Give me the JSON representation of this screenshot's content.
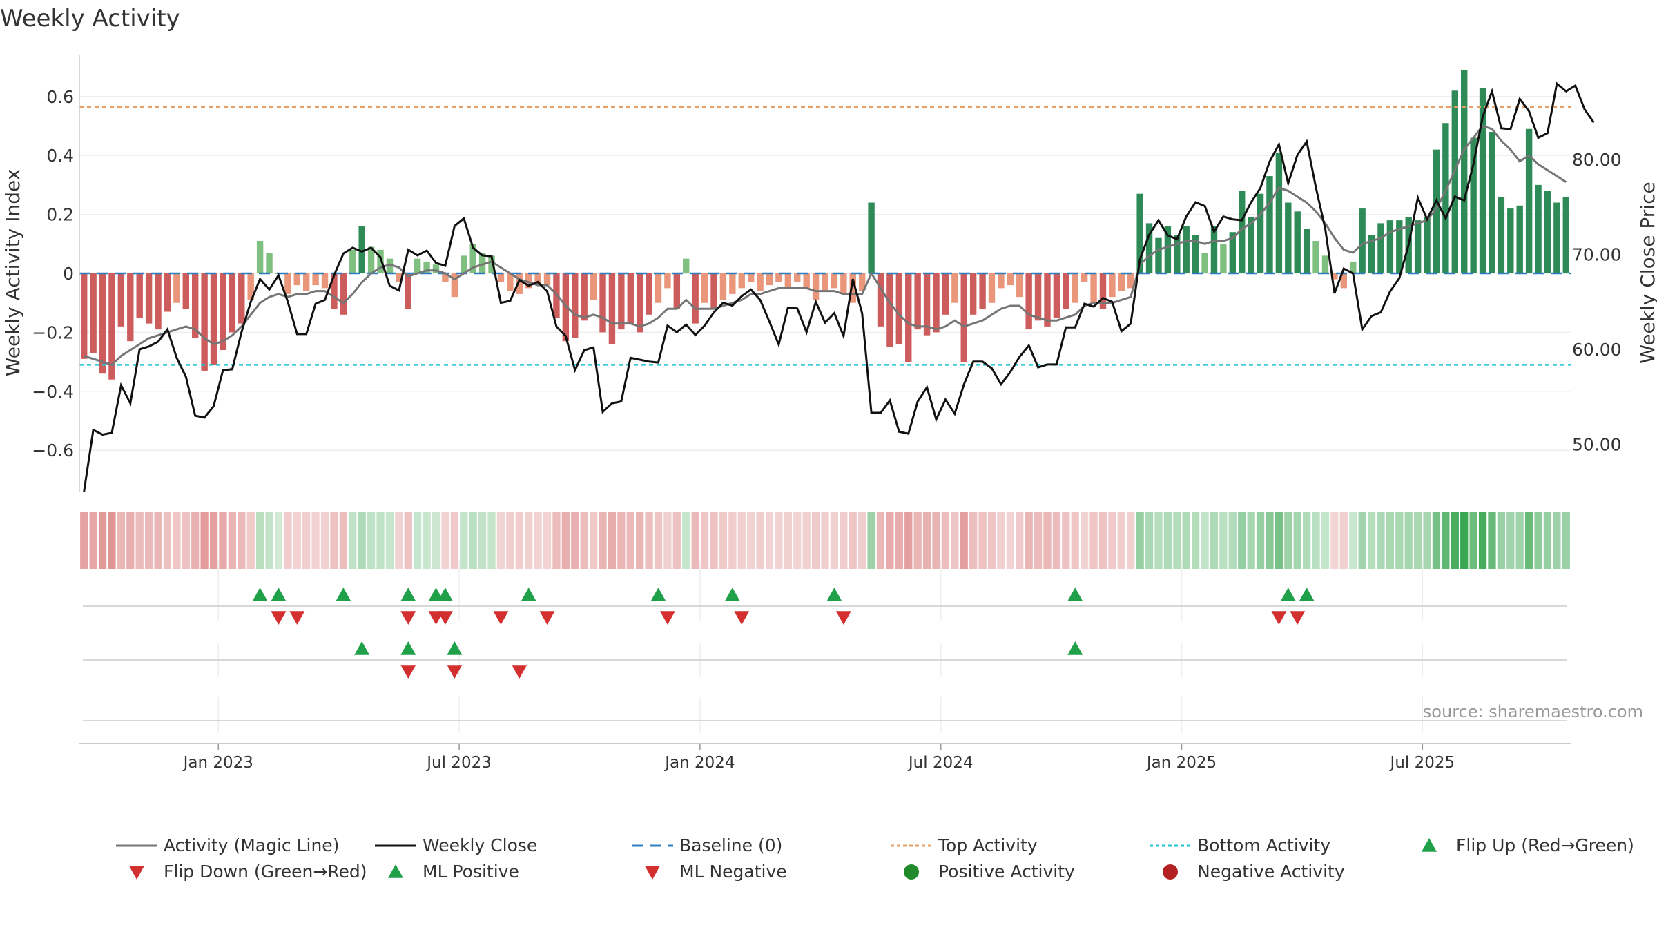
{
  "chart_data": {
    "type": "bar+line",
    "title": "Weekly Activity",
    "ylabel_left": "Weekly Activity Index",
    "ylabel_right": "Weekly Close Price",
    "ylim_left": [
      -0.74,
      0.74
    ],
    "ylim_right": [
      45,
      91
    ],
    "yticks_left": [
      {
        "value": 0.6,
        "label": "0.6"
      },
      {
        "value": 0.4,
        "label": "0.4"
      },
      {
        "value": 0.2,
        "label": "0.2"
      },
      {
        "value": 0,
        "label": "0"
      },
      {
        "value": -0.2,
        "label": "−0.2"
      },
      {
        "value": -0.4,
        "label": "−0.4"
      },
      {
        "value": -0.6,
        "label": "−0.6"
      }
    ],
    "yticks_right": [
      {
        "value": 80,
        "label": "80.00"
      },
      {
        "value": 70,
        "label": "70.00"
      },
      {
        "value": 60,
        "label": "60.00"
      },
      {
        "value": 50,
        "label": "50.00"
      }
    ],
    "xticks": [
      {
        "index": 14.5,
        "label": "Jan 2023"
      },
      {
        "index": 40.5,
        "label": "Jul 2023"
      },
      {
        "index": 66.5,
        "label": "Jan 2024"
      },
      {
        "index": 92.5,
        "label": "Jul 2024"
      },
      {
        "index": 118.5,
        "label": "Jan 2025"
      },
      {
        "index": 144.5,
        "label": "Jul 2025"
      }
    ],
    "top_activity": 0.565,
    "bottom_activity": -0.31,
    "baseline": 0,
    "activity": [
      -0.29,
      -0.27,
      -0.34,
      -0.36,
      -0.18,
      -0.23,
      -0.15,
      -0.17,
      -0.19,
      -0.13,
      -0.1,
      -0.12,
      -0.22,
      -0.33,
      -0.31,
      -0.26,
      -0.2,
      -0.17,
      -0.09,
      0.11,
      0.07,
      0,
      -0.07,
      -0.04,
      -0.06,
      -0.04,
      -0.05,
      -0.12,
      -0.14,
      0.08,
      0.16,
      0.09,
      0.08,
      0.05,
      -0.03,
      -0.12,
      0.05,
      0.04,
      0.03,
      -0.03,
      -0.08,
      0.06,
      0.1,
      0.07,
      0.06,
      -0.03,
      -0.06,
      -0.07,
      -0.05,
      -0.04,
      -0.04,
      -0.15,
      -0.23,
      -0.22,
      -0.16,
      -0.09,
      -0.2,
      -0.24,
      -0.19,
      -0.17,
      -0.2,
      -0.14,
      -0.1,
      -0.05,
      -0.12,
      0.05,
      -0.17,
      -0.1,
      -0.12,
      -0.09,
      -0.07,
      -0.05,
      -0.03,
      -0.06,
      -0.04,
      -0.03,
      -0.05,
      -0.03,
      -0.05,
      -0.09,
      -0.06,
      -0.05,
      -0.07,
      -0.1,
      -0.06,
      0.24,
      -0.18,
      -0.25,
      -0.24,
      -0.3,
      -0.19,
      -0.21,
      -0.2,
      -0.14,
      -0.1,
      -0.3,
      -0.14,
      -0.12,
      -0.1,
      -0.05,
      -0.04,
      -0.08,
      -0.19,
      -0.16,
      -0.18,
      -0.15,
      -0.12,
      -0.1,
      -0.03,
      -0.1,
      -0.12,
      -0.08,
      -0.06,
      -0.05,
      0.27,
      0.17,
      0.12,
      0.16,
      0.13,
      0.16,
      0.13,
      0.07,
      0.16,
      0.1,
      0.14,
      0.28,
      0.19,
      0.27,
      0.33,
      0.41,
      0.24,
      0.21,
      0.15,
      0.11,
      0.06,
      -0.02,
      -0.05,
      0.04,
      0.22,
      0.13,
      0.17,
      0.18,
      0.18,
      0.19,
      0.18,
      0.19,
      0.42,
      0.51,
      0.62,
      0.69,
      0.46,
      0.63,
      0.48,
      0.26,
      0.22,
      0.23,
      0.49,
      0.3,
      0.28,
      0.24,
      0.26
    ],
    "magic_line": [
      -0.28,
      -0.29,
      -0.3,
      -0.31,
      -0.28,
      -0.26,
      -0.24,
      -0.22,
      -0.21,
      -0.2,
      -0.19,
      -0.18,
      -0.19,
      -0.22,
      -0.24,
      -0.23,
      -0.21,
      -0.18,
      -0.14,
      -0.1,
      -0.08,
      -0.07,
      -0.08,
      -0.07,
      -0.07,
      -0.06,
      -0.06,
      -0.08,
      -0.1,
      -0.07,
      -0.03,
      0,
      0.02,
      0.03,
      0.02,
      -0.01,
      0,
      0.01,
      0.01,
      0,
      -0.02,
      0,
      0.02,
      0.03,
      0.04,
      0.02,
      0,
      -0.02,
      -0.03,
      -0.04,
      -0.04,
      -0.07,
      -0.11,
      -0.14,
      -0.15,
      -0.14,
      -0.15,
      -0.17,
      -0.17,
      -0.17,
      -0.18,
      -0.17,
      -0.15,
      -0.12,
      -0.12,
      -0.09,
      -0.12,
      -0.12,
      -0.12,
      -0.11,
      -0.1,
      -0.09,
      -0.07,
      -0.07,
      -0.06,
      -0.05,
      -0.05,
      -0.05,
      -0.05,
      -0.06,
      -0.06,
      -0.06,
      -0.07,
      -0.07,
      -0.07,
      0,
      -0.05,
      -0.1,
      -0.14,
      -0.17,
      -0.18,
      -0.18,
      -0.19,
      -0.18,
      -0.16,
      -0.18,
      -0.17,
      -0.16,
      -0.14,
      -0.12,
      -0.11,
      -0.11,
      -0.14,
      -0.15,
      -0.16,
      -0.16,
      -0.15,
      -0.14,
      -0.11,
      -0.1,
      -0.1,
      -0.1,
      -0.09,
      -0.08,
      0.03,
      0.06,
      0.08,
      0.09,
      0.1,
      0.11,
      0.11,
      0.1,
      0.11,
      0.11,
      0.12,
      0.15,
      0.17,
      0.2,
      0.24,
      0.29,
      0.28,
      0.26,
      0.24,
      0.21,
      0.17,
      0.12,
      0.08,
      0.07,
      0.1,
      0.11,
      0.12,
      0.14,
      0.15,
      0.16,
      0.17,
      0.18,
      0.22,
      0.28,
      0.35,
      0.42,
      0.46,
      0.5,
      0.49,
      0.45,
      0.42,
      0.38,
      0.4,
      0.37,
      0.35,
      0.33,
      0.31
    ],
    "weekly_close": [
      45.0,
      51.5,
      51.0,
      51.2,
      56.2,
      54.3,
      60.0,
      60.3,
      60.8,
      62.1,
      59.1,
      57.1,
      53.0,
      52.8,
      54.0,
      57.8,
      57.9,
      61.8,
      65.0,
      67.4,
      66.3,
      67.8,
      65.0,
      61.6,
      61.6,
      64.8,
      65.2,
      67.8,
      70.1,
      70.7,
      70.3,
      70.7,
      69.7,
      66.7,
      66.2,
      70.5,
      69.9,
      70.4,
      69.1,
      68.8,
      73.0,
      73.8,
      70.7,
      69.9,
      69.8,
      64.9,
      65.1,
      67.3,
      66.7,
      67.1,
      66.1,
      62.4,
      61.4,
      57.8,
      59.9,
      60.2,
      53.4,
      54.3,
      54.5,
      59.1,
      58.9,
      58.7,
      58.6,
      62.5,
      61.8,
      62.6,
      61.5,
      62.5,
      63.9,
      64.9,
      64.6,
      65.6,
      66.3,
      65.2,
      62.9,
      60.5,
      64.4,
      64.3,
      61.8,
      65.0,
      62.8,
      63.8,
      61.4,
      67.4,
      63.8,
      53.3,
      53.3,
      54.6,
      51.3,
      51.1,
      54.5,
      56.0,
      52.6,
      54.7,
      53.2,
      56.3,
      58.7,
      58.7,
      58.0,
      56.3,
      57.6,
      59.2,
      60.4,
      58.1,
      58.4,
      58.4,
      62.3,
      62.3,
      64.8,
      64.5,
      65.4,
      65.0,
      61.9,
      62.7,
      69.5,
      72.1,
      73.6,
      72.0,
      71.6,
      74.0,
      75.5,
      75.1,
      72.4,
      74.0,
      73.7,
      73.6,
      75.5,
      77.0,
      79.8,
      81.6,
      77.5,
      80.5,
      81.9,
      77.0,
      72.7,
      65.9,
      68.5,
      68.0,
      62.1,
      63.5,
      63.9,
      66.1,
      67.5,
      71.0,
      76.0,
      73.7,
      75.7,
      73.8,
      76.1,
      75.7,
      79.5,
      84.5,
      87.2,
      83.3,
      83.2,
      86.4,
      85.1,
      82.3,
      82.8,
      88.0,
      87.2,
      87.8,
      85.3,
      83.9
    ],
    "flip_up": [
      19,
      21,
      28,
      35,
      38,
      39,
      48,
      62,
      70,
      81,
      107,
      130,
      132
    ],
    "flip_down": [
      21,
      23,
      35,
      38,
      39,
      45,
      50,
      63,
      71,
      82,
      129,
      131
    ],
    "ml_positive": [
      30,
      35,
      40,
      107
    ],
    "ml_negative": [
      35,
      40,
      47
    ],
    "legend": [
      {
        "label": "Activity (Magic Line)",
        "kind": "line",
        "color": "#757575"
      },
      {
        "label": "Weekly Close",
        "kind": "line",
        "color": "#111111"
      },
      {
        "label": "Baseline (0)",
        "kind": "dashed",
        "color": "#2f7fc0"
      },
      {
        "label": "Top Activity",
        "kind": "dotted",
        "color": "#e5a06a"
      },
      {
        "label": "Bottom Activity",
        "kind": "dotted",
        "color": "#21c4d2"
      },
      {
        "label": "Flip Up (Red→Green)",
        "kind": "triangle-up",
        "color": "#21a04a"
      },
      {
        "label": "Flip Down (Green→Red)",
        "kind": "triangle-down",
        "color": "#d32f2f"
      },
      {
        "label": "ML Positive",
        "kind": "triangle-up",
        "color": "#21a04a"
      },
      {
        "label": "ML Negative",
        "kind": "triangle-down",
        "color": "#d32f2f"
      },
      {
        "label": "Positive Activity",
        "kind": "circle",
        "color": "#218a2a"
      },
      {
        "label": "Negative Activity",
        "kind": "circle",
        "color": "#b22222"
      }
    ],
    "source": "source: sharemaestro.com"
  },
  "colors": {
    "pos_strong": "#2e8b57",
    "pos_weak": "#7fbf7f",
    "neg_strong": "#cd5c5c",
    "neg_weak": "#e9967a",
    "grid": "#eeeeee",
    "axis": "#cccccc",
    "text": "#333333"
  }
}
